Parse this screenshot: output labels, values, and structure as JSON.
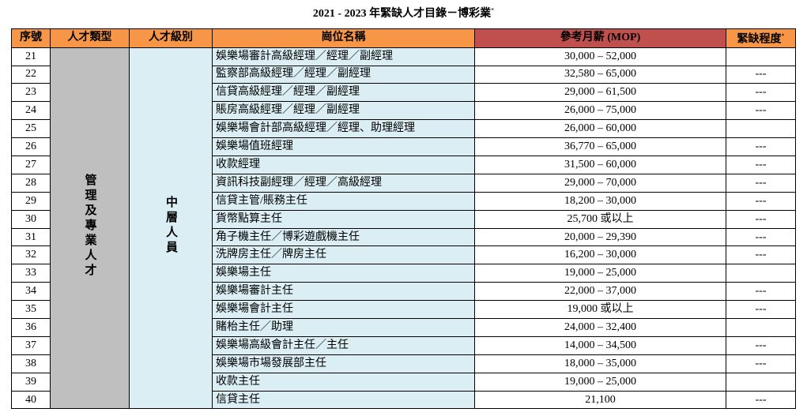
{
  "header": {
    "title": "2021 - 2023 年緊缺人才目錄－博彩業",
    "title_mark": "*"
  },
  "table": {
    "columns": [
      "序號",
      "人才類型",
      "人才級別",
      "崗位名稱",
      "參考月薪 (MOP)",
      "緊缺程度"
    ],
    "shortage_mark": "*",
    "category": "管理及專業人才",
    "level": "中層人員",
    "rows": [
      [
        21,
        "娛樂場審計高級經理／經理／副經理",
        "30,000 – 52,000",
        null
      ],
      [
        22,
        "監察部高級經理／經理／副經理",
        "32,580 – 65,000",
        "---"
      ],
      [
        23,
        "信貸高級經理／經理／副經理",
        "29,000 – 61,500",
        "---"
      ],
      [
        24,
        "賬房高級經理／經理／副經理",
        "26,000 – 75,000",
        "---"
      ],
      [
        25,
        "娛樂場會計部高級經理／經理、助理經理",
        "26,000 – 60,000",
        null
      ],
      [
        26,
        "娛樂場值班經理",
        "36,770 – 65,000",
        "---"
      ],
      [
        27,
        "收款經理",
        "31,500 – 60,000",
        "---"
      ],
      [
        28,
        "資訊科技副經理／經理／高級經理",
        "29,000 – 70,000",
        "---"
      ],
      [
        29,
        "信貸主管/賬務主任",
        "18,200 – 30,000",
        "---"
      ],
      [
        30,
        "貨幣點算主任",
        "25,700 或以上",
        "---"
      ],
      [
        31,
        "角子機主任／博彩遊戲機主任",
        "20,000 – 29,390",
        "---"
      ],
      [
        32,
        "洗牌房主任／牌房主任",
        "16,200 – 30,000",
        "---"
      ],
      [
        33,
        "娛樂場主任",
        "19,000 – 25,000",
        null
      ],
      [
        34,
        "娛樂場審計主任",
        "22,000 – 37,000",
        "---"
      ],
      [
        35,
        "娛樂場會計主任",
        "19,000 或以上",
        "---"
      ],
      [
        36,
        "賭枱主任／助理",
        "24,000 – 32,400",
        null
      ],
      [
        37,
        "娛樂場高級會計主任／主任",
        "14,000 – 34,500",
        "---"
      ],
      [
        38,
        "娛樂場市場發展部主任",
        "18,000 – 35,000",
        "---"
      ],
      [
        39,
        "收款主任",
        "19,000 – 25,000",
        null
      ],
      [
        40,
        "信貸主任",
        "21,100",
        "---"
      ]
    ]
  }
}
